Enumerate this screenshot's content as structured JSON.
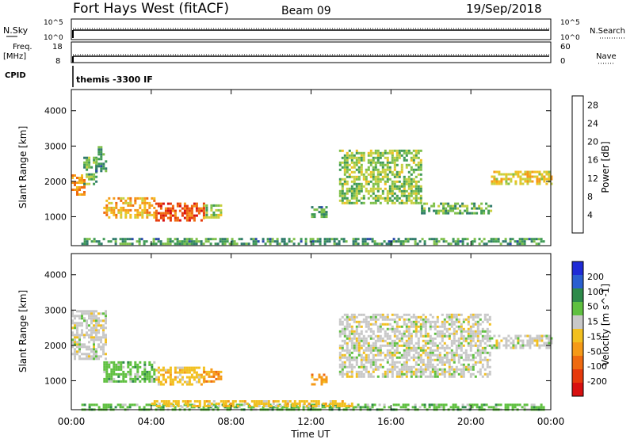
{
  "header": {
    "station": "Fort Hays West (fitACF)",
    "beam": "Beam 09",
    "date": "19/Sep/2018"
  },
  "strips": {
    "nsky_label": "N.Sky",
    "nsearch_label": "N.Search",
    "freq_label": "Freq.",
    "freq_unit": "[MHz]",
    "nave_label": "Nave",
    "cpid_label": "CPID",
    "cpid_value": "themis -3300 IF",
    "noise_ticks_left": [
      "10^5",
      "10^0"
    ],
    "noise_ticks_right": [
      "10^5",
      "10^0"
    ],
    "freq_ticks": [
      "18",
      "8"
    ],
    "nave_ticks": [
      "60",
      "0"
    ]
  },
  "axes": {
    "ylabel": "Slant Range [km]",
    "xlabel": "Time UT",
    "x_ticks": [
      "00:00",
      "04:00",
      "08:00",
      "12:00",
      "16:00",
      "20:00",
      "00:00"
    ],
    "y_ticks": [
      "1000",
      "2000",
      "3000",
      "4000"
    ]
  },
  "colorbars": {
    "power": {
      "label": "Power [dB]",
      "ticks": [
        "4",
        "8",
        "12",
        "16",
        "20",
        "24",
        "28"
      ],
      "colors": [
        "#1f2bd6",
        "#2848a8",
        "#2f7a6a",
        "#3f9a55",
        "#7fc04a",
        "#c8d040",
        "#f2c020",
        "#f59a18",
        "#ef6a10",
        "#e63a0c",
        "#d81010"
      ]
    },
    "velocity": {
      "label": "Velocity [m s^-1]",
      "ticks": [
        "200",
        "100",
        "50",
        "15",
        "-15",
        "-50",
        "-100",
        "-200"
      ],
      "colors": [
        "#1f2bd6",
        "#2a5fd0",
        "#2e8a4a",
        "#5fc040",
        "#c8c8c8",
        "#f2c020",
        "#f59a18",
        "#ef6a10",
        "#e63a0c",
        "#d81010"
      ]
    }
  },
  "chart_data": [
    {
      "type": "heatmap",
      "panel": "power",
      "x_range_hours": [
        0,
        24
      ],
      "ylim": [
        180,
        4600
      ],
      "clusters": [
        {
          "t": [
            0.0,
            0.6
          ],
          "r": [
            1650,
            2200
          ],
          "v": 22
        },
        {
          "t": [
            0.6,
            1.2
          ],
          "r": [
            1900,
            2700
          ],
          "v": 12
        },
        {
          "t": [
            1.2,
            1.7
          ],
          "r": [
            2300,
            3000
          ],
          "v": 10
        },
        {
          "t": [
            1.6,
            4.2
          ],
          "r": [
            1000,
            1550
          ],
          "v": 20
        },
        {
          "t": [
            4.2,
            6.6
          ],
          "r": [
            900,
            1400
          ],
          "v": 26
        },
        {
          "t": [
            6.6,
            7.5
          ],
          "r": [
            1000,
            1350
          ],
          "v": 14
        },
        {
          "t": [
            0.5,
            23.6
          ],
          "r": [
            250,
            400
          ],
          "v": 10
        },
        {
          "t": [
            12.0,
            12.8
          ],
          "r": [
            1000,
            1300
          ],
          "v": 10
        },
        {
          "t": [
            13.4,
            17.5
          ],
          "r": [
            1400,
            2900
          ],
          "v": 14
        },
        {
          "t": [
            17.5,
            21.0
          ],
          "r": [
            1100,
            1400
          ],
          "v": 12
        },
        {
          "t": [
            21.0,
            24.0
          ],
          "r": [
            1900,
            2300
          ],
          "v": 18
        }
      ]
    },
    {
      "type": "heatmap",
      "panel": "velocity",
      "x_range_hours": [
        0,
        24
      ],
      "ylim": [
        180,
        4600
      ],
      "clusters": [
        {
          "t": [
            0.0,
            1.7
          ],
          "r": [
            1650,
            3000
          ],
          "v": 0
        },
        {
          "t": [
            1.6,
            4.2
          ],
          "r": [
            1000,
            1550
          ],
          "v": 30
        },
        {
          "t": [
            4.2,
            6.6
          ],
          "r": [
            900,
            1400
          ],
          "v": -30
        },
        {
          "t": [
            6.6,
            7.5
          ],
          "r": [
            1000,
            1350
          ],
          "v": -60
        },
        {
          "t": [
            0.5,
            23.6
          ],
          "r": [
            200,
            350
          ],
          "v": 25
        },
        {
          "t": [
            4.0,
            14.0
          ],
          "r": [
            300,
            450
          ],
          "v": -40
        },
        {
          "t": [
            12.0,
            12.8
          ],
          "r": [
            900,
            1200
          ],
          "v": -70
        },
        {
          "t": [
            13.4,
            21.0
          ],
          "r": [
            1100,
            2900
          ],
          "v": 0
        },
        {
          "t": [
            21.0,
            24.0
          ],
          "r": [
            1900,
            2300
          ],
          "v": 0
        }
      ]
    }
  ]
}
